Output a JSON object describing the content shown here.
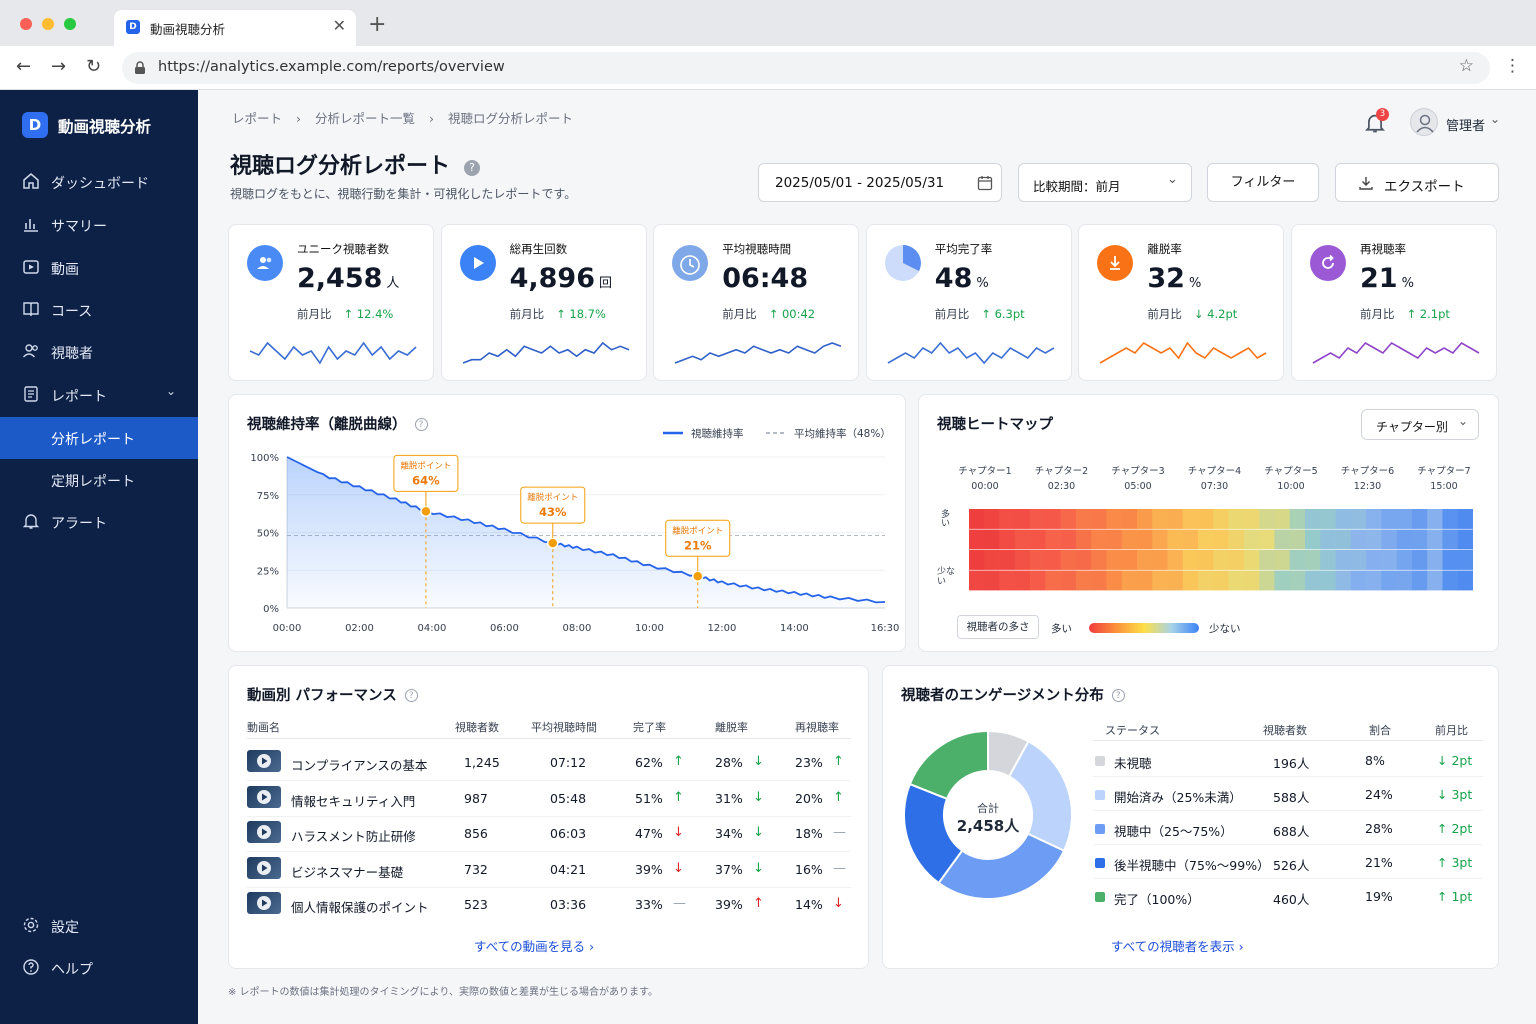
{
  "browser": {
    "tab_title": "動画視聴分析",
    "tab_favicon": "D",
    "url": "https://analytics.example.com/reports/overview"
  },
  "sidebar": {
    "logo_letter": "D",
    "brand": "動画視聴分析",
    "items": [
      {
        "label": "ダッシュボード",
        "icon": "home-icon"
      },
      {
        "label": "サマリー",
        "icon": "bar-chart-icon"
      },
      {
        "label": "動画",
        "icon": "video-icon"
      },
      {
        "label": "コース",
        "icon": "book-icon"
      },
      {
        "label": "視聴者",
        "icon": "users-icon"
      },
      {
        "label": "レポート",
        "icon": "report-icon"
      }
    ],
    "sub_items": [
      {
        "label": "分析レポート",
        "active": true
      },
      {
        "label": "定期レポート",
        "active": false
      }
    ],
    "alert": "アラート",
    "settings": "設定",
    "help": "ヘルプ"
  },
  "header": {
    "breadcrumb": [
      "レポート",
      "分析レポート一覧",
      "視聴ログ分析レポート"
    ],
    "notification_count": "3",
    "user": "管理者",
    "title": "視聴ログ分析レポート",
    "subtitle": "視聴ログをもとに、視聴行動を集計・可視化したレポートです。",
    "date_range": "2025/05/01 - 2025/05/31",
    "compare": "比較期間：前月",
    "filter": "フィルター",
    "export": "エクスポート"
  },
  "kpis": [
    {
      "label": "ユニーク視聴者数",
      "value": "2,458",
      "unit": "人",
      "cmp": "前月比",
      "delta": "↑ 12.4%",
      "color": "#4a8af4",
      "icon": "users-icon",
      "spark": "#3b6fd4",
      "trend": [
        6,
        5,
        8,
        6,
        4,
        7,
        5,
        6,
        3,
        7,
        4,
        6,
        5,
        8,
        5,
        7,
        4,
        6,
        5,
        7
      ]
    },
    {
      "label": "総再生回数",
      "value": "4,896",
      "unit": "回",
      "cmp": "前月比",
      "delta": "↑ 18.7%",
      "color": "#3b82f6",
      "icon": "play-icon",
      "spark": "#2f5fc8",
      "trend": [
        3,
        4,
        4,
        6,
        5,
        7,
        5,
        8,
        7,
        6,
        8,
        6,
        7,
        5,
        7,
        6,
        9,
        7,
        8,
        7
      ]
    },
    {
      "label": "平均視聴時間",
      "value": "06:48",
      "unit": "",
      "cmp": "前月比",
      "delta": "↑ 00:42",
      "color": "#7fa8e8",
      "icon": "clock-icon",
      "spark": "#2f5fc8",
      "trend": [
        3,
        4,
        5,
        4,
        6,
        5,
        6,
        7,
        6,
        8,
        7,
        6,
        7,
        6,
        8,
        7,
        6,
        8,
        9,
        8
      ]
    },
    {
      "label": "平均完了率",
      "value": "48",
      "unit": "%",
      "cmp": "前月比",
      "delta": "↑ 6.3pt",
      "color": "#5b8ef0",
      "icon": "pie-icon",
      "spark": "#3b6fd4",
      "trend": [
        4,
        5,
        6,
        5,
        7,
        6,
        8,
        6,
        7,
        5,
        6,
        4,
        6,
        5,
        7,
        6,
        5,
        7,
        6,
        7
      ]
    },
    {
      "label": "離脱率",
      "value": "32",
      "unit": "%",
      "cmp": "前月比",
      "delta": "↓ 4.2pt",
      "color": "#f97316",
      "icon": "download-icon",
      "spark": "#f97316",
      "trend": [
        4,
        5,
        6,
        7,
        6,
        8,
        7,
        6,
        7,
        5,
        8,
        6,
        5,
        7,
        6,
        5,
        6,
        7,
        5,
        6
      ]
    },
    {
      "label": "再視聴率",
      "value": "21",
      "unit": "%",
      "cmp": "前月比",
      "delta": "↑ 2.1pt",
      "color": "#9b59d6",
      "icon": "replay-icon",
      "spark": "#8e44c8",
      "trend": [
        3,
        4,
        5,
        4,
        6,
        5,
        7,
        6,
        5,
        7,
        6,
        5,
        4,
        6,
        5,
        6,
        5,
        7,
        6,
        5
      ]
    }
  ],
  "retention": {
    "title": "視聴維持率（離脱曲線）",
    "legend_main": "視聴維持率",
    "legend_avg": "平均維持率（48%）",
    "drop_label": "離脱ポイント",
    "drops": [
      "64%",
      "43%",
      "21%"
    ]
  },
  "heatmap": {
    "title": "視聴ヒートマップ",
    "select": "チャプター別",
    "chapters": [
      {
        "name": "チャプター1",
        "time": "00:00"
      },
      {
        "name": "チャプター2",
        "time": "02:30"
      },
      {
        "name": "チャプター3",
        "time": "05:00"
      },
      {
        "name": "チャプター4",
        "time": "07:30"
      },
      {
        "name": "チャプター5",
        "time": "10:00"
      },
      {
        "name": "チャプター6",
        "time": "12:30"
      },
      {
        "name": "チャプター7",
        "time": "15:00"
      }
    ],
    "y_top": "多い",
    "y_bottom": "少ない",
    "legend_title": "視聴者の多さ",
    "legend_high": "多い",
    "legend_low": "少ない"
  },
  "performance": {
    "title": "動画別 パフォーマンス",
    "headers": [
      "動画名",
      "視聴者数",
      "平均視聴時間",
      "完了率",
      "離脱率",
      "再視聴率"
    ],
    "rows": [
      {
        "name": "コンプライアンスの基本",
        "viewers": "1,245",
        "time": "07:12",
        "comp": "62%",
        "comp_t": "up",
        "drop": "28%",
        "drop_t": "down-good",
        "rew": "23%",
        "rew_t": "up"
      },
      {
        "name": "情報セキュリティ入門",
        "viewers": "987",
        "time": "05:48",
        "comp": "51%",
        "comp_t": "up",
        "drop": "31%",
        "drop_t": "down-good",
        "rew": "20%",
        "rew_t": "up"
      },
      {
        "name": "ハラスメント防止研修",
        "viewers": "856",
        "time": "06:03",
        "comp": "47%",
        "comp_t": "down",
        "drop": "34%",
        "drop_t": "down-good",
        "rew": "18%",
        "rew_t": "flat"
      },
      {
        "name": "ビジネスマナー基礎",
        "viewers": "732",
        "time": "04:21",
        "comp": "39%",
        "comp_t": "down",
        "drop": "37%",
        "drop_t": "down-good",
        "rew": "16%",
        "rew_t": "flat"
      },
      {
        "name": "個人情報保護のポイント",
        "viewers": "523",
        "time": "03:36",
        "comp": "33%",
        "comp_t": "flat",
        "drop": "39%",
        "drop_t": "up-bad",
        "rew": "14%",
        "rew_t": "down"
      }
    ],
    "link": "すべての動画を見る"
  },
  "engagement": {
    "title": "視聴者のエンゲージメント分布",
    "total_label": "合計",
    "total_value": "2,458人",
    "headers": [
      "ステータス",
      "視聴者数",
      "割合",
      "前月比"
    ],
    "rows": [
      {
        "status": "未視聴",
        "count": "196人",
        "pct": "8%",
        "delta": "↓ 2pt",
        "color": "#d4d6db"
      },
      {
        "status": "開始済み（25%未満）",
        "count": "588人",
        "pct": "24%",
        "delta": "↓ 3pt",
        "color": "#bcd3fb"
      },
      {
        "status": "視聴中（25〜75%）",
        "count": "688人",
        "pct": "28%",
        "delta": "↑ 2pt",
        "color": "#6c9cf3"
      },
      {
        "status": "後半視聴中（75%〜99%）",
        "count": "526人",
        "pct": "21%",
        "delta": "↑ 3pt",
        "color": "#2e6ee6"
      },
      {
        "status": "完了（100%）",
        "count": "460人",
        "pct": "19%",
        "delta": "↑ 1pt",
        "color": "#4caf6a"
      }
    ],
    "link": "すべての視聴者を表示"
  },
  "footnote": "※ レポートの数値は集計処理のタイミングにより、実際の数値と差異が生じる場合があります。",
  "chart_data": [
    {
      "type": "line",
      "title": "視聴維持率（離脱曲線）",
      "x": [
        "00:00",
        "01:00",
        "02:00",
        "03:00",
        "03:50",
        "05:00",
        "06:00",
        "07:20",
        "08:00",
        "09:00",
        "10:00",
        "11:20",
        "12:00",
        "13:00",
        "14:00",
        "15:00",
        "16:30"
      ],
      "series": [
        {
          "name": "視聴維持率",
          "values": [
            100,
            88,
            80,
            72,
            64,
            58,
            52,
            43,
            40,
            35,
            28,
            21,
            17,
            13,
            10,
            7,
            4
          ]
        },
        {
          "name": "平均維持率（48%）",
          "values": [
            48,
            48,
            48,
            48,
            48,
            48,
            48,
            48,
            48,
            48,
            48,
            48,
            48,
            48,
            48,
            48,
            48
          ]
        }
      ],
      "x_ticks": [
        "00:00",
        "02:00",
        "04:00",
        "06:00",
        "08:00",
        "10:00",
        "12:00",
        "14:00",
        "16:30"
      ],
      "y_ticks": [
        "100%",
        "75%",
        "50%",
        "25%",
        "0%"
      ],
      "ylim": [
        0,
        100
      ]
    },
    {
      "type": "pie",
      "title": "視聴者のエンゲージメント分布",
      "categories": [
        "未視聴",
        "開始済み（25%未満）",
        "視聴中（25〜75%）",
        "後半視聴中（75%〜99%）",
        "完了（100%）"
      ],
      "values": [
        8,
        24,
        28,
        21,
        19
      ]
    }
  ]
}
